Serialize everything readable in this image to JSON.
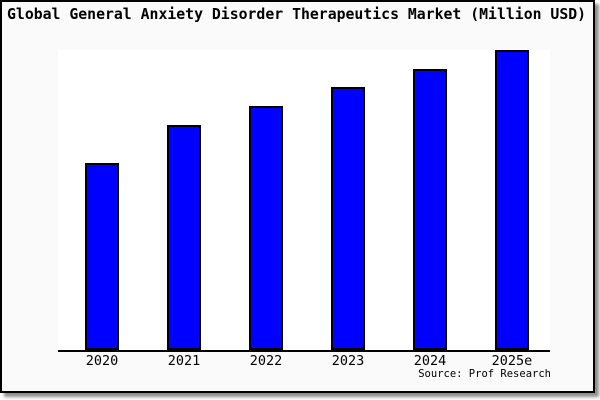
{
  "chart_data": {
    "type": "bar",
    "title": "Global General Anxiety Disorder Therapeutics Market (Million USD)",
    "categories": [
      "2020",
      "2021",
      "2022",
      "2023",
      "2024",
      "2025e"
    ],
    "values": [
      62.3,
      75.0,
      81.3,
      87.7,
      93.7,
      100.0
    ],
    "values_note": "Relative bar heights as % of tallest (2025e) bar; chart shows no y-axis scale or value labels",
    "xlabel": "",
    "ylabel": "",
    "ylim": [
      0,
      100
    ],
    "grid": false,
    "legend": false,
    "yaxis_labels_visible": false,
    "bar_color": "#0000FF",
    "bar_border_color": "#000000",
    "source": "Source: Prof Research"
  },
  "colors": {
    "card_background": "#FAFAFA",
    "plot_background": "#FFFFFF",
    "card_border": "#000000",
    "axis_line": "#000000",
    "shadow": "#8F8F8F",
    "text": "#000000"
  }
}
